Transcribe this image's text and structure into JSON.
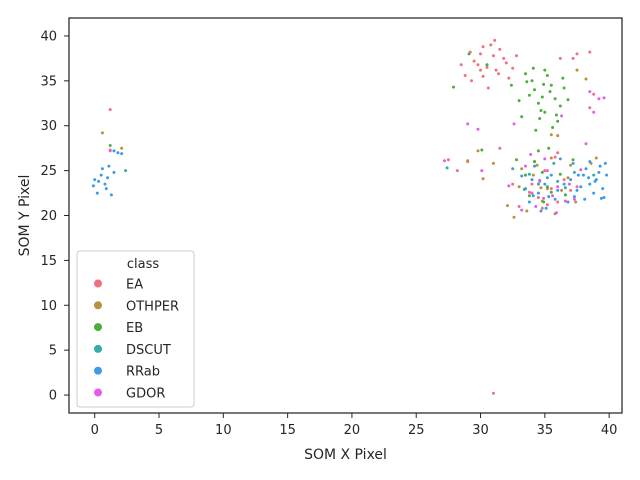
{
  "chart_data": {
    "type": "scatter",
    "title": "",
    "xlabel": "SOM X Pixel",
    "ylabel": "SOM Y Pixel",
    "xlim": [
      -2,
      41
    ],
    "ylim": [
      -2,
      42
    ],
    "xticks": [
      0,
      5,
      10,
      15,
      20,
      25,
      30,
      35,
      40
    ],
    "yticks": [
      0,
      5,
      10,
      15,
      20,
      25,
      30,
      35,
      40
    ],
    "grid": false,
    "legend": {
      "title": "class",
      "placement": "lower-left",
      "entries": [
        "EA",
        "OTHPER",
        "EB",
        "DSCUT",
        "RRab",
        "GDOR"
      ]
    },
    "series": [
      {
        "name": "EA",
        "color": "#f07080",
        "points": [
          [
            1.2,
            31.8
          ],
          [
            31,
            0.2
          ],
          [
            29.5,
            37.2
          ],
          [
            30,
            38
          ],
          [
            30.5,
            36.5
          ],
          [
            31,
            37.8
          ],
          [
            31.2,
            36.2
          ],
          [
            30.2,
            35.5
          ],
          [
            29.8,
            36.8
          ],
          [
            31.5,
            38.5
          ],
          [
            32,
            37
          ],
          [
            32.5,
            36.4
          ],
          [
            30.8,
            39
          ],
          [
            31.8,
            37.5
          ],
          [
            29.3,
            35
          ],
          [
            30.6,
            34.2
          ],
          [
            28.5,
            36.8
          ],
          [
            32.8,
            37.8
          ],
          [
            30.2,
            38.8
          ],
          [
            31.4,
            35.8
          ],
          [
            29.2,
            38.2
          ],
          [
            28.8,
            35.6
          ],
          [
            31.1,
            39.5
          ],
          [
            32.2,
            35.3
          ],
          [
            30,
            36.2
          ],
          [
            37.5,
            38
          ],
          [
            38.5,
            38.2
          ],
          [
            37.2,
            37.5
          ],
          [
            38.5,
            32
          ],
          [
            38.8,
            33.5
          ],
          [
            36.2,
            37.5
          ],
          [
            34,
            23.5
          ],
          [
            34.5,
            22
          ],
          [
            35,
            25
          ],
          [
            35.5,
            23
          ],
          [
            36,
            21.5
          ],
          [
            34.2,
            26
          ],
          [
            33.5,
            24.5
          ],
          [
            36.5,
            24
          ],
          [
            35.8,
            26.5
          ],
          [
            37,
            22.8
          ],
          [
            33,
            21
          ],
          [
            34.8,
            20.8
          ],
          [
            37.5,
            23.2
          ],
          [
            32.5,
            23.5
          ],
          [
            28.2,
            25
          ],
          [
            29,
            26
          ],
          [
            27.5,
            26.2
          ],
          [
            31.5,
            27.5
          ],
          [
            36,
            27
          ],
          [
            35.2,
            21.2
          ],
          [
            33.8,
            22.6
          ]
        ]
      },
      {
        "name": "OTHPER",
        "color": "#b8923a",
        "points": [
          [
            0.6,
            29.2
          ],
          [
            1.2,
            27.2
          ],
          [
            2.1,
            27.5
          ],
          [
            29.8,
            27.2
          ],
          [
            31,
            25.8
          ],
          [
            30.2,
            24.1
          ],
          [
            33,
            23.2
          ],
          [
            34.1,
            24.5
          ],
          [
            34.8,
            21.6
          ],
          [
            35.5,
            26.4
          ],
          [
            36.3,
            22.8
          ],
          [
            33.6,
            20.5
          ],
          [
            32.6,
            19.8
          ],
          [
            36.8,
            24.2
          ],
          [
            37.4,
            21.5
          ],
          [
            35.2,
            23
          ],
          [
            34.4,
            25.6
          ],
          [
            39,
            26.4
          ],
          [
            38.6,
            25.8
          ],
          [
            36,
            28.9
          ],
          [
            33.2,
            25.2
          ],
          [
            35.8,
            20.2
          ],
          [
            37,
            25.6
          ],
          [
            29,
            26.1
          ],
          [
            32.1,
            21.1
          ],
          [
            34.7,
            23.1
          ],
          [
            38.2,
            35.2
          ],
          [
            37.5,
            36.2
          ],
          [
            35.5,
            29
          ]
        ]
      },
      {
        "name": "EB",
        "color": "#4cae3a",
        "points": [
          [
            1.2,
            27.8
          ],
          [
            27.9,
            34.3
          ],
          [
            29.1,
            38
          ],
          [
            30.5,
            36.8
          ],
          [
            33.5,
            35.8
          ],
          [
            34.2,
            34
          ],
          [
            34.8,
            33.2
          ],
          [
            35.5,
            34.5
          ],
          [
            34.5,
            32.5
          ],
          [
            35.8,
            33
          ],
          [
            34,
            35
          ],
          [
            35,
            31.5
          ],
          [
            36.2,
            32.2
          ],
          [
            34.6,
            30.8
          ],
          [
            35.2,
            35.6
          ],
          [
            33.8,
            33.4
          ],
          [
            36.5,
            34.2
          ],
          [
            35,
            36.2
          ],
          [
            34.3,
            29.5
          ],
          [
            36,
            30.5
          ],
          [
            33,
            32.8
          ],
          [
            35.6,
            29.8
          ],
          [
            34.9,
            34.6
          ],
          [
            36.8,
            32.9
          ],
          [
            33.2,
            31
          ],
          [
            35.4,
            33.8
          ],
          [
            34.1,
            36.4
          ],
          [
            36.4,
            35.3
          ],
          [
            32.4,
            34.5
          ],
          [
            34.7,
            31.7
          ],
          [
            35.9,
            31.2
          ],
          [
            33.6,
            34.9
          ],
          [
            30.1,
            27.3
          ],
          [
            34.5,
            27.2
          ],
          [
            33.5,
            24.5
          ],
          [
            34.2,
            26
          ],
          [
            34.8,
            24.8
          ],
          [
            35.2,
            23.2
          ],
          [
            33.8,
            22.2
          ],
          [
            35.5,
            22.6
          ],
          [
            36.2,
            24.6
          ],
          [
            34.9,
            21.5
          ],
          [
            37.2,
            26.2
          ],
          [
            32.8,
            26.2
          ],
          [
            35.3,
            27.5
          ],
          [
            36.6,
            22.3
          ]
        ]
      },
      {
        "name": "DSCUT",
        "color": "#35aca8",
        "points": [
          [
            2.4,
            25
          ],
          [
            27.4,
            25.3
          ],
          [
            32.5,
            25.2
          ],
          [
            33.8,
            24.6
          ],
          [
            34.5,
            23.5
          ],
          [
            35.2,
            24.2
          ],
          [
            36,
            23.8
          ],
          [
            34.1,
            22.2
          ],
          [
            37.3,
            24.8
          ],
          [
            33.4,
            22.9
          ],
          [
            35.7,
            25.8
          ],
          [
            36.6,
            23.1
          ],
          [
            38.8,
            24.5
          ]
        ]
      },
      {
        "name": "RRab",
        "color": "#3a9ce6",
        "points": [
          [
            0,
            24
          ],
          [
            0.3,
            23.8
          ],
          [
            0.5,
            24.5
          ],
          [
            0.8,
            23.5
          ],
          [
            1,
            24.2
          ],
          [
            0.2,
            22.5
          ],
          [
            1.3,
            22.3
          ],
          [
            0.6,
            25.2
          ],
          [
            1.1,
            25.5
          ],
          [
            -0.1,
            23.3
          ],
          [
            0.9,
            23
          ],
          [
            1.5,
            24.8
          ],
          [
            1.8,
            27
          ],
          [
            1.5,
            27.2
          ],
          [
            2.1,
            26.9
          ],
          [
            33.5,
            23
          ],
          [
            34,
            24
          ],
          [
            34.5,
            22.5
          ],
          [
            35,
            23.5
          ],
          [
            35.5,
            24.5
          ],
          [
            36,
            22.8
          ],
          [
            34.2,
            25.5
          ],
          [
            33.8,
            21.5
          ],
          [
            35.8,
            21.8
          ],
          [
            36.5,
            23.5
          ],
          [
            37,
            24
          ],
          [
            37.5,
            22.8
          ],
          [
            38,
            24.5
          ],
          [
            38.5,
            23.5
          ],
          [
            39,
            24
          ],
          [
            39.5,
            23
          ],
          [
            38.2,
            25.2
          ],
          [
            38.8,
            22.5
          ],
          [
            39.3,
            25.5
          ],
          [
            37.8,
            23.2
          ],
          [
            38.5,
            26
          ],
          [
            39.8,
            24.5
          ],
          [
            39.6,
            22
          ],
          [
            37.2,
            25.8
          ],
          [
            36.8,
            21.5
          ],
          [
            38.9,
            23.8
          ],
          [
            39.2,
            24.8
          ],
          [
            38.4,
            24.2
          ],
          [
            37.6,
            24.5
          ],
          [
            39.7,
            25.8
          ],
          [
            38.1,
            21.8
          ],
          [
            34.7,
            20.5
          ],
          [
            35.3,
            22.1
          ],
          [
            33.2,
            24.4
          ],
          [
            36.2,
            26.3
          ],
          [
            34.6,
            23.9
          ],
          [
            35.1,
            20.8
          ],
          [
            37.3,
            22.1
          ],
          [
            39.4,
            21.9
          ]
        ]
      },
      {
        "name": "GDOR",
        "color": "#e55de6",
        "points": [
          [
            1.2,
            27.3
          ],
          [
            27.2,
            26.1
          ],
          [
            29,
            30.2
          ],
          [
            29.8,
            29.6
          ],
          [
            30.1,
            25
          ],
          [
            32.6,
            30.2
          ],
          [
            33.5,
            25.5
          ],
          [
            34,
            22.5
          ],
          [
            34.6,
            23.8
          ],
          [
            35.2,
            25
          ],
          [
            35.6,
            22.2
          ],
          [
            36,
            23.2
          ],
          [
            36.6,
            21.6
          ],
          [
            34.3,
            21
          ],
          [
            33.2,
            20.6
          ],
          [
            35,
            26.3
          ],
          [
            37.3,
            21.8
          ],
          [
            38.2,
            28
          ],
          [
            38.8,
            31.5
          ],
          [
            39.6,
            33.1
          ],
          [
            39.2,
            33
          ],
          [
            36.3,
            31.1
          ],
          [
            37.8,
            25.1
          ],
          [
            34.9,
            21.9
          ],
          [
            35.9,
            20.3
          ],
          [
            33.9,
            26.8
          ],
          [
            32.2,
            23.3
          ],
          [
            36.9,
            23.5
          ],
          [
            38.5,
            33.8
          ]
        ]
      }
    ]
  }
}
